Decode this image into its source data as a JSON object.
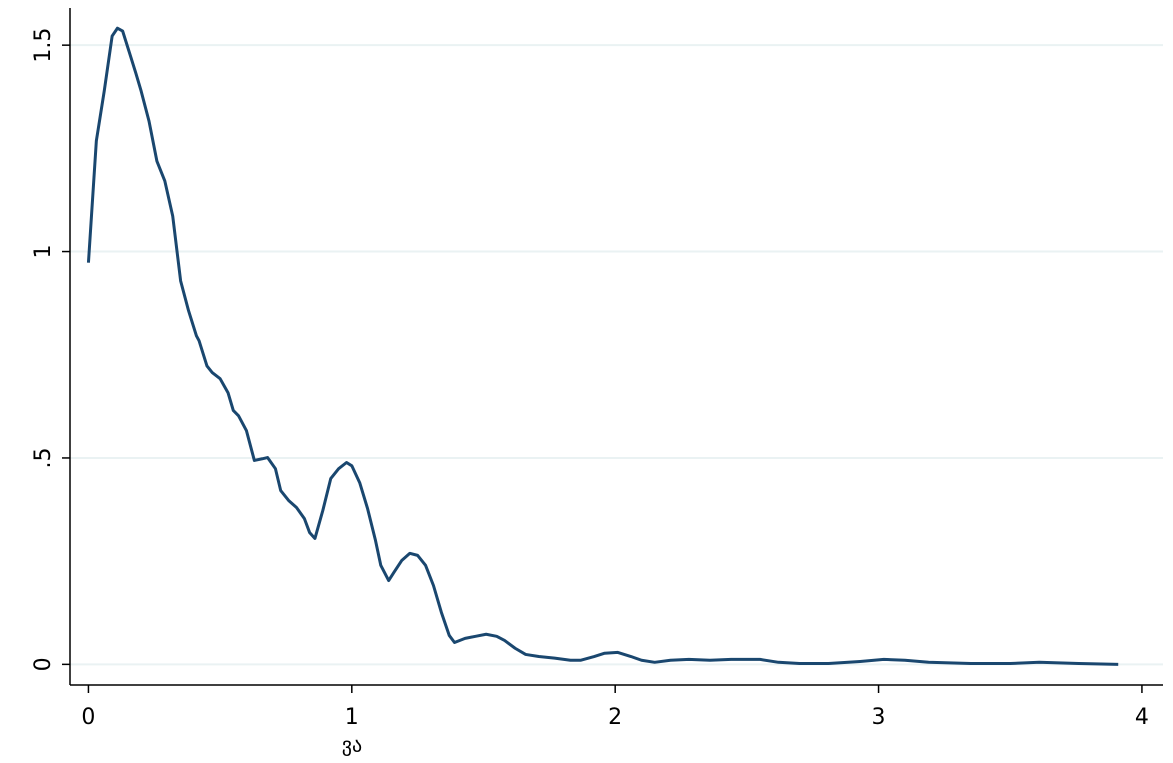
{
  "chart_data": {
    "type": "line",
    "x_label": "ვა",
    "x": [
      0,
      0.03,
      0.06,
      0.09,
      0.11,
      0.13,
      0.16,
      0.18,
      0.2,
      0.23,
      0.26,
      0.29,
      0.32,
      0.35,
      0.38,
      0.41,
      0.42,
      0.45,
      0.47,
      0.5,
      0.53,
      0.55,
      0.57,
      0.6,
      0.63,
      0.66,
      0.68,
      0.71,
      0.73,
      0.76,
      0.79,
      0.82,
      0.84,
      0.86,
      0.89,
      0.92,
      0.95,
      0.98,
      1.0,
      1.03,
      1.06,
      1.09,
      1.11,
      1.14,
      1.16,
      1.19,
      1.22,
      1.25,
      1.28,
      1.31,
      1.34,
      1.37,
      1.39,
      1.43,
      1.47,
      1.51,
      1.55,
      1.58,
      1.62,
      1.66,
      1.71,
      1.77,
      1.83,
      1.87,
      1.92,
      1.96,
      2.01,
      2.06,
      2.1,
      2.15,
      2.21,
      2.28,
      2.36,
      2.44,
      2.55,
      2.62,
      2.7,
      2.81,
      2.93,
      3.02,
      3.1,
      3.19,
      3.35,
      3.5,
      3.61,
      3.76,
      3.91
    ],
    "series": [
      {
        "color": "#1a476f",
        "values": [
          0.973,
          1.268,
          1.389,
          1.522,
          1.541,
          1.534,
          1.473,
          1.432,
          1.389,
          1.316,
          1.219,
          1.171,
          1.086,
          0.929,
          0.857,
          0.796,
          0.784,
          0.723,
          0.707,
          0.692,
          0.658,
          0.615,
          0.602,
          0.566,
          0.494,
          0.498,
          0.501,
          0.474,
          0.421,
          0.397,
          0.38,
          0.353,
          0.319,
          0.305,
          0.373,
          0.45,
          0.474,
          0.489,
          0.481,
          0.44,
          0.377,
          0.3,
          0.24,
          0.203,
          0.223,
          0.252,
          0.269,
          0.264,
          0.24,
          0.191,
          0.126,
          0.07,
          0.053,
          0.063,
          0.068,
          0.073,
          0.068,
          0.058,
          0.039,
          0.024,
          0.019,
          0.015,
          0.01,
          0.01,
          0.019,
          0.027,
          0.029,
          0.019,
          0.01,
          0.005,
          0.01,
          0.012,
          0.01,
          0.012,
          0.012,
          0.005,
          0.002,
          0.002,
          0.007,
          0.012,
          0.01,
          0.005,
          0.002,
          0.002,
          0.005,
          0.002,
          0.0
        ]
      }
    ],
    "xlim": [
      -0.07,
      4.08
    ],
    "xticks": [
      0,
      1,
      2,
      3,
      4
    ],
    "ylim": [
      -0.05,
      1.59
    ],
    "yticks": [
      0,
      {
        "value": 0.5,
        "label": ".5"
      },
      1,
      1.5
    ],
    "grid": true
  }
}
